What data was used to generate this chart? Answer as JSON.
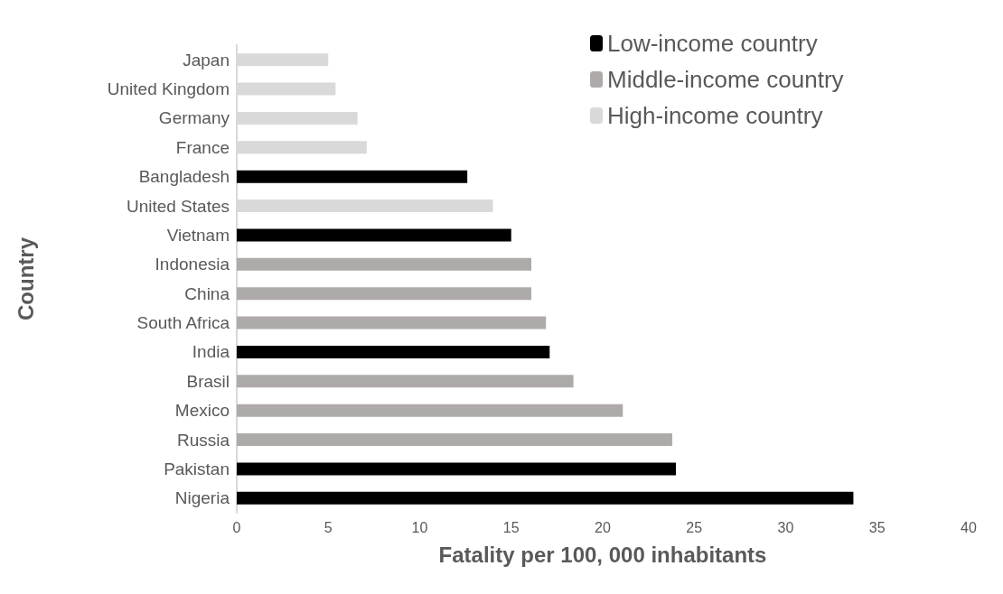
{
  "chart_data": {
    "type": "bar",
    "orientation": "horizontal",
    "xlabel": "Fatality per 100, 000 inhabitants",
    "ylabel": "Country",
    "categories": [
      "Japan",
      "United Kingdom",
      "Germany",
      "France",
      "Bangladesh",
      "United States",
      "Vietnam",
      "Indonesia",
      "China",
      "South Africa",
      "India",
      "Brasil",
      "Mexico",
      "Russia",
      "Pakistan",
      "Nigeria"
    ],
    "series": [
      {
        "name": "Low-income country",
        "color": "#000000",
        "values": [
          null,
          null,
          null,
          null,
          12.6,
          null,
          15.0,
          null,
          null,
          null,
          17.1,
          null,
          null,
          null,
          24.0,
          33.7
        ]
      },
      {
        "name": "Middle-income country",
        "color": "#aeaaaa",
        "values": [
          null,
          null,
          null,
          null,
          null,
          null,
          null,
          16.1,
          16.1,
          16.9,
          null,
          18.4,
          21.1,
          23.8,
          null,
          null
        ]
      },
      {
        "name": "High-income country",
        "color": "#d9d9d9",
        "values": [
          5.0,
          5.4,
          6.6,
          7.1,
          null,
          14.0,
          null,
          null,
          null,
          null,
          null,
          null,
          null,
          null,
          null,
          null
        ]
      }
    ],
    "xlim": [
      0,
      40
    ],
    "xticks": [
      0,
      5,
      10,
      15,
      20,
      25,
      30,
      35,
      40
    ],
    "grid": false,
    "legend": "top right"
  }
}
